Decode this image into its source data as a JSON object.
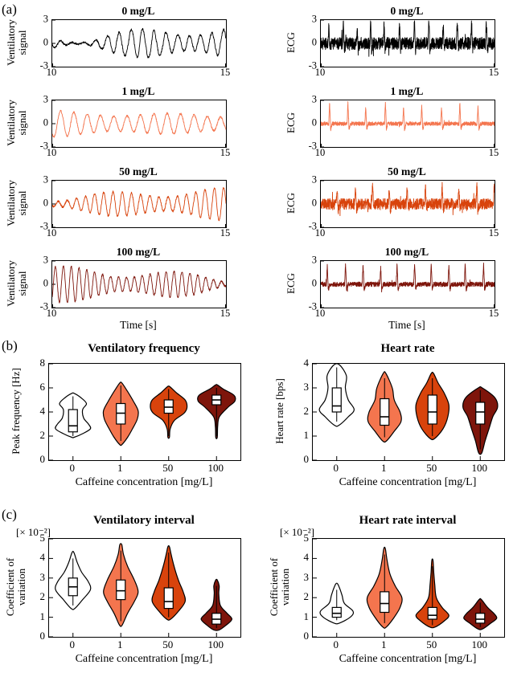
{
  "panels": {
    "a": {
      "label": "(a)"
    },
    "b": {
      "label": "(b)"
    },
    "c": {
      "label": "(c)"
    }
  },
  "concentration_colors": {
    "0": "#000000",
    "1": "#F4754E",
    "50": "#D8430C",
    "100": "#7E150B"
  },
  "chart_data": [
    {
      "id": "timeseries",
      "type": "line",
      "panel": "a",
      "xlabel": "Time [s]",
      "xlim": [
        10,
        15
      ],
      "xticks": [
        10,
        15
      ],
      "ylim": [
        -3,
        3
      ],
      "yticks": [
        3,
        0,
        -3
      ],
      "columns": [
        {
          "signal": "ventilatory",
          "ylabel_lines": [
            "Ventilatory",
            "signal"
          ]
        },
        {
          "signal": "ecg",
          "ylabel_lines": [
            "ECG"
          ]
        }
      ],
      "rows": [
        {
          "label": "0 mg/L",
          "color": "#000000",
          "vent_freq_hz": 3.0,
          "vent_mod": 0.9,
          "vent_jitter": 1.2,
          "heart_rate_bps": 2.4,
          "ecg_noise": 0.8,
          "seed": 11
        },
        {
          "label": "1 mg/L",
          "color": "#F4754E",
          "vent_freq_hz": 2.6,
          "vent_mod": 0.35,
          "vent_jitter": 0.15,
          "heart_rate_bps": 1.8,
          "ecg_noise": 0.25,
          "seed": 22
        },
        {
          "label": "50 mg/L",
          "color": "#D8430C",
          "vent_freq_hz": 3.8,
          "vent_mod": 0.7,
          "vent_jitter": 0.5,
          "heart_rate_bps": 2.0,
          "ecg_noise": 0.7,
          "seed": 33
        },
        {
          "label": "100 mg/L",
          "color": "#7E150B",
          "vent_freq_hz": 4.4,
          "vent_mod": 0.85,
          "vent_jitter": 0.5,
          "heart_rate_bps": 2.0,
          "ecg_noise": 0.3,
          "seed": 44
        }
      ]
    },
    {
      "id": "vent-frequency",
      "type": "violin",
      "panel": "b",
      "title": "Ventilatory frequency",
      "ylabel_lines": [
        "Peak frequency [Hz]"
      ],
      "xlabel": "Caffeine concentration [mg/L]",
      "ylim": [
        0,
        8
      ],
      "yticks": [
        0,
        2,
        4,
        6,
        8
      ],
      "categories": [
        "0",
        "1",
        "50",
        "100"
      ],
      "violins": [
        {
          "category": "0",
          "color": "#FFFFFF",
          "stats": {
            "min": 2.0,
            "q1": 2.35,
            "median": 2.85,
            "q3": 4.2,
            "max": 5.3
          },
          "shape": [
            [
              1.9,
              0.06
            ],
            [
              2.2,
              0.5
            ],
            [
              2.6,
              0.9
            ],
            [
              3.0,
              0.8
            ],
            [
              3.5,
              0.55
            ],
            [
              4.2,
              0.5
            ],
            [
              4.7,
              0.7
            ],
            [
              5.2,
              0.4
            ],
            [
              5.55,
              0.06
            ]
          ]
        },
        {
          "category": "1",
          "color": "#F4754E",
          "stats": {
            "min": 1.6,
            "q1": 3.0,
            "median": 3.9,
            "q3": 4.7,
            "max": 6.2
          },
          "shape": [
            [
              1.3,
              0.06
            ],
            [
              1.9,
              0.35
            ],
            [
              2.6,
              0.6
            ],
            [
              3.4,
              0.85
            ],
            [
              4.1,
              0.9
            ],
            [
              4.9,
              0.65
            ],
            [
              5.7,
              0.35
            ],
            [
              6.4,
              0.06
            ]
          ]
        },
        {
          "category": "50",
          "color": "#D8430C",
          "stats": {
            "min": 2.0,
            "q1": 3.9,
            "median": 4.4,
            "q3": 5.0,
            "max": 5.9
          },
          "shape": [
            [
              1.9,
              0.04
            ],
            [
              2.6,
              0.08
            ],
            [
              3.3,
              0.3
            ],
            [
              3.9,
              0.8
            ],
            [
              4.4,
              0.95
            ],
            [
              5.0,
              0.85
            ],
            [
              5.6,
              0.4
            ],
            [
              6.1,
              0.06
            ]
          ]
        },
        {
          "category": "100",
          "color": "#7E150B",
          "stats": {
            "min": 2.0,
            "q1": 4.6,
            "median": 5.0,
            "q3": 5.4,
            "max": 6.0
          },
          "shape": [
            [
              1.9,
              0.04
            ],
            [
              2.8,
              0.06
            ],
            [
              3.6,
              0.15
            ],
            [
              4.4,
              0.6
            ],
            [
              4.9,
              0.95
            ],
            [
              5.4,
              0.9
            ],
            [
              5.9,
              0.35
            ],
            [
              6.25,
              0.05
            ]
          ]
        }
      ]
    },
    {
      "id": "heart-rate",
      "type": "violin",
      "panel": "b",
      "title": "Heart rate",
      "ylabel_lines": [
        "Heart rate [bps]"
      ],
      "xlabel": "Caffeine concentration [mg/L]",
      "ylim": [
        0,
        4
      ],
      "yticks": [
        0,
        1,
        2,
        3,
        4
      ],
      "categories": [
        "0",
        "1",
        "50",
        "100"
      ],
      "violins": [
        {
          "category": "0",
          "color": "#FFFFFF",
          "stats": {
            "min": 1.6,
            "q1": 2.0,
            "median": 2.25,
            "q3": 3.0,
            "max": 3.85
          },
          "shape": [
            [
              1.45,
              0.12
            ],
            [
              1.8,
              0.6
            ],
            [
              2.1,
              0.9
            ],
            [
              2.5,
              0.6
            ],
            [
              3.0,
              0.45
            ],
            [
              3.5,
              0.5
            ],
            [
              3.95,
              0.15
            ]
          ]
        },
        {
          "category": "1",
          "color": "#F4754E",
          "stats": {
            "min": 0.95,
            "q1": 1.45,
            "median": 1.8,
            "q3": 2.55,
            "max": 3.4
          },
          "shape": [
            [
              0.8,
              0.1
            ],
            [
              1.2,
              0.5
            ],
            [
              1.6,
              0.85
            ],
            [
              2.0,
              0.8
            ],
            [
              2.5,
              0.5
            ],
            [
              3.0,
              0.4
            ],
            [
              3.6,
              0.07
            ]
          ]
        },
        {
          "category": "50",
          "color": "#D8430C",
          "stats": {
            "min": 1.0,
            "q1": 1.5,
            "median": 2.0,
            "q3": 2.7,
            "max": 3.4
          },
          "shape": [
            [
              0.9,
              0.12
            ],
            [
              1.3,
              0.55
            ],
            [
              1.8,
              0.8
            ],
            [
              2.3,
              0.85
            ],
            [
              2.8,
              0.6
            ],
            [
              3.2,
              0.3
            ],
            [
              3.6,
              0.06
            ]
          ]
        },
        {
          "category": "100",
          "color": "#7E150B",
          "stats": {
            "min": 0.45,
            "q1": 1.5,
            "median": 2.0,
            "q3": 2.4,
            "max": 2.9
          },
          "shape": [
            [
              0.3,
              0.08
            ],
            [
              0.8,
              0.25
            ],
            [
              1.3,
              0.45
            ],
            [
              1.8,
              0.65
            ],
            [
              2.2,
              0.9
            ],
            [
              2.6,
              0.75
            ],
            [
              3.0,
              0.1
            ]
          ]
        }
      ]
    },
    {
      "id": "vent-interval",
      "type": "violin",
      "panel": "c",
      "title": "Ventilatory interval",
      "scale_label": "[× 10⁻²]",
      "ylabel_lines": [
        "Coefficient of",
        "variation"
      ],
      "xlabel": "Caffeine concentration [mg/L]",
      "ylim": [
        0,
        5
      ],
      "yticks": [
        0,
        1,
        2,
        3,
        4,
        5
      ],
      "categories": [
        "0",
        "1",
        "50",
        "100"
      ],
      "violins": [
        {
          "category": "0",
          "color": "#FFFFFF",
          "stats": {
            "min": 1.6,
            "q1": 2.1,
            "median": 2.55,
            "q3": 3.0,
            "max": 4.0
          },
          "shape": [
            [
              1.45,
              0.1
            ],
            [
              1.9,
              0.5
            ],
            [
              2.4,
              0.9
            ],
            [
              2.8,
              0.8
            ],
            [
              3.3,
              0.45
            ],
            [
              3.8,
              0.22
            ],
            [
              4.3,
              0.05
            ]
          ]
        },
        {
          "category": "1",
          "color": "#F4754E",
          "stats": {
            "min": 0.8,
            "q1": 1.9,
            "median": 2.35,
            "q3": 2.9,
            "max": 4.4
          },
          "shape": [
            [
              0.6,
              0.07
            ],
            [
              1.2,
              0.35
            ],
            [
              1.8,
              0.7
            ],
            [
              2.3,
              0.9
            ],
            [
              2.9,
              0.7
            ],
            [
              3.6,
              0.35
            ],
            [
              4.2,
              0.14
            ],
            [
              4.7,
              0.05
            ]
          ]
        },
        {
          "category": "50",
          "color": "#D8430C",
          "stats": {
            "min": 1.0,
            "q1": 1.45,
            "median": 1.8,
            "q3": 2.5,
            "max": 4.3
          },
          "shape": [
            [
              0.9,
              0.1
            ],
            [
              1.3,
              0.5
            ],
            [
              1.8,
              0.85
            ],
            [
              2.3,
              0.75
            ],
            [
              2.9,
              0.5
            ],
            [
              3.6,
              0.28
            ],
            [
              4.2,
              0.13
            ],
            [
              4.6,
              0.04
            ]
          ]
        },
        {
          "category": "100",
          "color": "#7E150B",
          "stats": {
            "min": 0.45,
            "q1": 0.65,
            "median": 0.9,
            "q3": 1.2,
            "max": 2.6
          },
          "shape": [
            [
              0.35,
              0.14
            ],
            [
              0.6,
              0.5
            ],
            [
              0.9,
              0.8
            ],
            [
              1.2,
              0.55
            ],
            [
              1.6,
              0.2
            ],
            [
              2.2,
              0.12
            ],
            [
              2.6,
              0.14
            ],
            [
              2.9,
              0.04
            ]
          ]
        }
      ]
    },
    {
      "id": "hr-interval",
      "type": "violin",
      "panel": "c",
      "title": "Heart rate interval",
      "scale_label": "[× 10⁻²]",
      "ylabel_lines": [
        "Coefficient of",
        "variation"
      ],
      "xlabel": "Caffeine concentration [mg/L]",
      "ylim": [
        0,
        5
      ],
      "yticks": [
        0,
        1,
        2,
        3,
        4,
        5
      ],
      "categories": [
        "0",
        "1",
        "50",
        "100"
      ],
      "violins": [
        {
          "category": "0",
          "color": "#FFFFFF",
          "stats": {
            "min": 0.85,
            "q1": 1.0,
            "median": 1.2,
            "q3": 1.5,
            "max": 2.4
          },
          "shape": [
            [
              0.7,
              0.14
            ],
            [
              1.0,
              0.7
            ],
            [
              1.3,
              0.85
            ],
            [
              1.7,
              0.4
            ],
            [
              2.1,
              0.28
            ],
            [
              2.4,
              0.18
            ],
            [
              2.7,
              0.05
            ]
          ]
        },
        {
          "category": "1",
          "color": "#F4754E",
          "stats": {
            "min": 0.7,
            "q1": 1.25,
            "median": 1.7,
            "q3": 2.3,
            "max": 4.2
          },
          "shape": [
            [
              0.5,
              0.09
            ],
            [
              1.0,
              0.5
            ],
            [
              1.5,
              0.8
            ],
            [
              2.0,
              0.9
            ],
            [
              2.6,
              0.55
            ],
            [
              3.2,
              0.28
            ],
            [
              3.9,
              0.13
            ],
            [
              4.5,
              0.04
            ]
          ]
        },
        {
          "category": "50",
          "color": "#D8430C",
          "stats": {
            "min": 0.6,
            "q1": 0.9,
            "median": 1.1,
            "q3": 1.5,
            "max": 3.6
          },
          "shape": [
            [
              0.5,
              0.14
            ],
            [
              0.8,
              0.6
            ],
            [
              1.1,
              0.85
            ],
            [
              1.5,
              0.5
            ],
            [
              2.0,
              0.2
            ],
            [
              2.7,
              0.12
            ],
            [
              3.3,
              0.07
            ],
            [
              3.9,
              0.03
            ]
          ]
        },
        {
          "category": "100",
          "color": "#7E150B",
          "stats": {
            "min": 0.5,
            "q1": 0.7,
            "median": 0.9,
            "q3": 1.2,
            "max": 1.75
          },
          "shape": [
            [
              0.4,
              0.12
            ],
            [
              0.7,
              0.55
            ],
            [
              0.95,
              0.85
            ],
            [
              1.2,
              0.7
            ],
            [
              1.5,
              0.38
            ],
            [
              1.9,
              0.06
            ]
          ]
        }
      ]
    }
  ]
}
